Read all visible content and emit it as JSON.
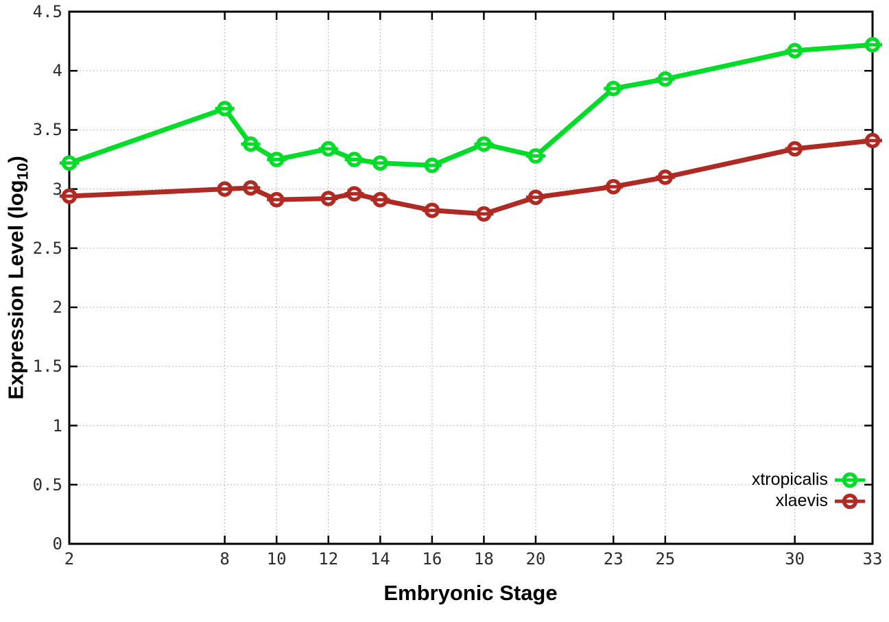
{
  "chart_data": {
    "type": "line",
    "title": "",
    "xlabel": "Embryonic Stage",
    "ylabel": {
      "prefix": "Expression Level (log",
      "sub": "10",
      "suffix": ")"
    },
    "x": [
      2,
      8,
      9,
      10,
      12,
      13,
      14,
      16,
      18,
      20,
      23,
      25,
      30,
      33
    ],
    "series": [
      {
        "name": "xtropicalis",
        "color": "#00dc28",
        "values": [
          3.22,
          3.68,
          3.38,
          3.25,
          3.34,
          3.25,
          3.22,
          3.2,
          3.38,
          3.28,
          3.85,
          3.93,
          4.17,
          4.22
        ]
      },
      {
        "name": "xlaevis",
        "color": "#ae2a22",
        "values": [
          2.94,
          3.0,
          3.01,
          2.91,
          2.92,
          2.96,
          2.91,
          2.82,
          2.79,
          2.93,
          3.02,
          3.1,
          3.34,
          3.41
        ]
      }
    ],
    "xticks": {
      "values": [
        2,
        8,
        10,
        12,
        14,
        16,
        18,
        20,
        23,
        25,
        30,
        33
      ],
      "labels": [
        "2",
        "8",
        "10",
        "12",
        "14",
        "16",
        "18",
        "20",
        "23",
        "25",
        "30",
        "33"
      ]
    },
    "yticks": {
      "values": [
        0,
        0.5,
        1,
        1.5,
        2,
        2.5,
        3,
        3.5,
        4,
        4.5
      ],
      "labels": [
        "0",
        "0.5",
        "1",
        "1.5",
        "2",
        "2.5",
        "3",
        "3.5",
        "4",
        "4.5"
      ]
    },
    "xlim": [
      2,
      33
    ],
    "ylim": [
      0,
      4.5
    ],
    "grid": true,
    "legend_position": "inside-bottom-right",
    "marker": "open-circle-with-errorbar"
  },
  "colors": {
    "background": "#ffffff",
    "grid": "#b8b8b8",
    "axis": "#000000",
    "tick_text": "#2b2b2b"
  }
}
